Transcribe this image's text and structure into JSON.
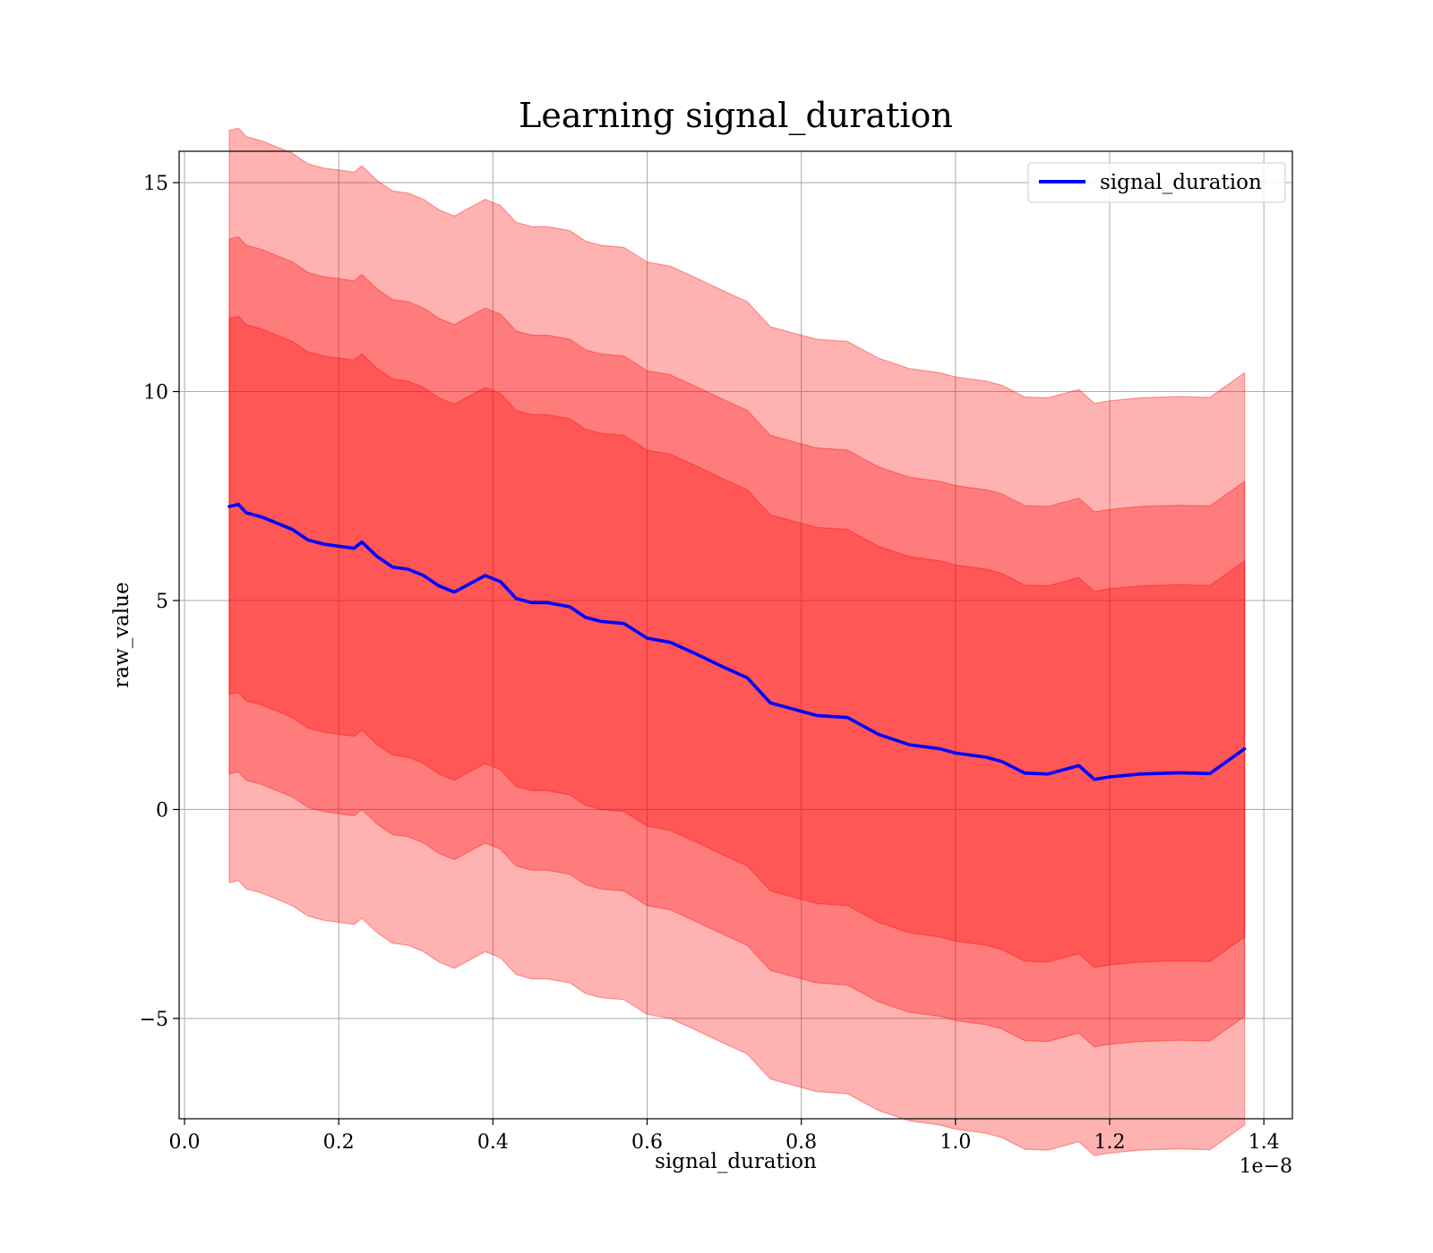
{
  "chart_data": {
    "type": "line",
    "title": "Learning signal_duration",
    "xlabel": "signal_duration",
    "ylabel": "raw_value",
    "x_offset_label": "1e−8",
    "xlim": [
      -0.007,
      1.437
    ],
    "ylim": [
      -7.4,
      15.75
    ],
    "x_ticks": [
      0.0,
      0.2,
      0.4,
      0.6,
      0.8,
      1.0,
      1.2,
      1.4
    ],
    "x_tick_labels": [
      "0.0",
      "0.2",
      "0.4",
      "0.6",
      "0.8",
      "1.0",
      "1.2",
      "1.4"
    ],
    "y_ticks": [
      -5,
      0,
      5,
      10,
      15
    ],
    "y_tick_labels": [
      "−5",
      "0",
      "5",
      "10",
      "15"
    ],
    "grid": true,
    "legend": {
      "position": "upper-right",
      "entries": [
        "signal_duration"
      ]
    },
    "colors": {
      "line": "#0000ff",
      "band": "#ff0000",
      "grid": "#b0b0b0"
    },
    "band_alphas": [
      0.3,
      0.3,
      0.3
    ],
    "band_stroke_alpha": 0.35,
    "x": [
      0.058,
      0.07,
      0.08,
      0.09,
      0.1,
      0.12,
      0.14,
      0.16,
      0.18,
      0.2,
      0.22,
      0.23,
      0.25,
      0.27,
      0.29,
      0.31,
      0.33,
      0.35,
      0.37,
      0.39,
      0.41,
      0.43,
      0.45,
      0.47,
      0.5,
      0.52,
      0.54,
      0.57,
      0.6,
      0.63,
      0.66,
      0.7,
      0.73,
      0.76,
      0.8,
      0.82,
      0.86,
      0.9,
      0.94,
      0.98,
      1.0,
      1.04,
      1.06,
      1.09,
      1.12,
      1.16,
      1.18,
      1.2,
      1.24,
      1.29,
      1.33,
      1.375
    ],
    "series": [
      {
        "name": "signal_duration",
        "values": [
          7.25,
          7.3,
          7.1,
          7.05,
          7.0,
          6.85,
          6.7,
          6.45,
          6.35,
          6.3,
          6.25,
          6.4,
          6.05,
          5.8,
          5.75,
          5.6,
          5.35,
          5.2,
          5.4,
          5.6,
          5.45,
          5.05,
          4.95,
          4.95,
          4.85,
          4.6,
          4.5,
          4.45,
          4.1,
          4.0,
          3.75,
          3.4,
          3.15,
          2.55,
          2.35,
          2.25,
          2.2,
          1.8,
          1.55,
          1.45,
          1.35,
          1.25,
          1.15,
          0.87,
          0.85,
          1.05,
          0.72,
          0.78,
          0.85,
          0.88,
          0.86,
          1.45
        ]
      }
    ],
    "bands": [
      {
        "half_width": 9.0
      },
      {
        "half_width": 6.4
      },
      {
        "half_width": 4.5
      }
    ]
  }
}
